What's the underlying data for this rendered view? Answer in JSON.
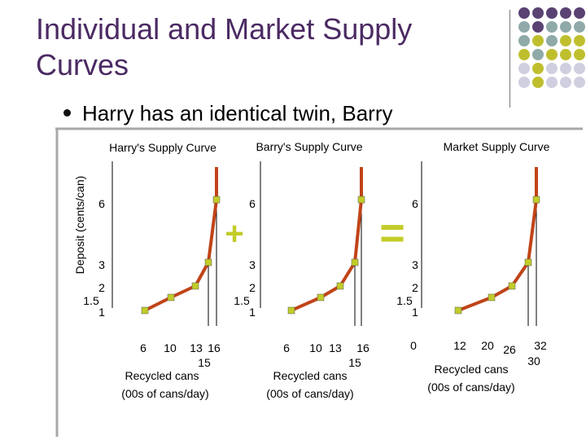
{
  "slide": {
    "title": "Individual and Market Supply Curves",
    "bullet": "Harry has an identical twin, Barry"
  },
  "colors": {
    "title": "#4b2a63",
    "curve": "#c04418",
    "point": "#c2cc28",
    "grid_purple": "#5a4273",
    "grid_teal": "#8faaa8",
    "grid_yellow": "#bfbf2e",
    "grid_lavender": "#cfcfe0"
  },
  "shared": {
    "ylabel": "Deposit (cents/can)",
    "xlabel_line1": "Recycled cans",
    "xlabel_line2": "(00s of cans/day)",
    "plus_sign": "+",
    "equals_sign": "="
  },
  "chart_data": [
    {
      "type": "line",
      "title": "Harry's Supply Curve",
      "y_tick_labels": [
        "6",
        "3",
        "2",
        "1.5",
        "1"
      ],
      "x_tick_labels": [
        "6",
        "10",
        "13",
        "16",
        "15"
      ],
      "points": [
        {
          "x": 6,
          "y": 1
        },
        {
          "x": 10,
          "y": 1.5
        },
        {
          "x": 13,
          "y": 2
        },
        {
          "x": 15,
          "y": 3
        },
        {
          "x": 16,
          "y": 6
        }
      ]
    },
    {
      "type": "line",
      "title": "Barry's Supply Curve",
      "y_tick_labels": [
        "6",
        "3",
        "2",
        "1.5",
        "1"
      ],
      "x_tick_labels": [
        "6",
        "10",
        "13",
        "16",
        "15"
      ],
      "points": [
        {
          "x": 6,
          "y": 1
        },
        {
          "x": 10,
          "y": 1.5
        },
        {
          "x": 13,
          "y": 2
        },
        {
          "x": 15,
          "y": 3
        },
        {
          "x": 16,
          "y": 6
        }
      ]
    },
    {
      "type": "line",
      "title": "Market Supply Curve",
      "y_tick_labels": [
        "6",
        "3",
        "2",
        "1.5",
        "1"
      ],
      "x_tick_labels": [
        "0",
        "12",
        "20",
        "26",
        "32",
        "30"
      ],
      "points": [
        {
          "x": 12,
          "y": 1
        },
        {
          "x": 20,
          "y": 1.5
        },
        {
          "x": 26,
          "y": 2
        },
        {
          "x": 30,
          "y": 3
        },
        {
          "x": 32,
          "y": 6
        }
      ]
    }
  ]
}
